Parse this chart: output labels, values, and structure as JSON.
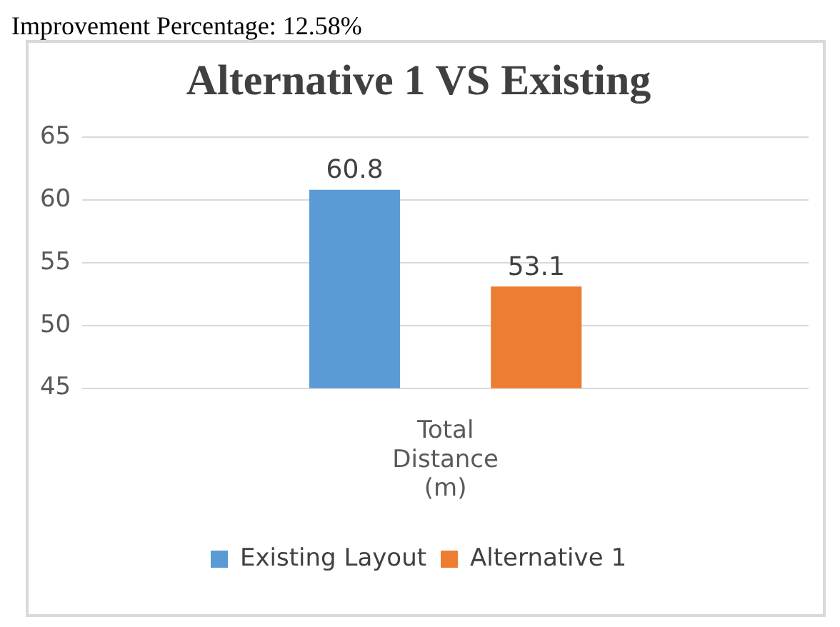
{
  "chart_data": {
    "type": "bar",
    "title": "Alternative 1 VS Existing",
    "annotations": [
      "Improvement Percentage: 12.58%"
    ],
    "categories": [
      "Total Distance (m)"
    ],
    "series": [
      {
        "name": "Existing Layout",
        "color": "#5b9bd5",
        "values": [
          60.8
        ]
      },
      {
        "name": "Alternative 1",
        "color": "#ed7d31",
        "values": [
          53.1
        ]
      }
    ],
    "ylim": [
      45,
      65
    ],
    "yticks": [
      45,
      50,
      55,
      60,
      65
    ],
    "grid": "y",
    "legend": "bottom",
    "data_labels": true
  }
}
